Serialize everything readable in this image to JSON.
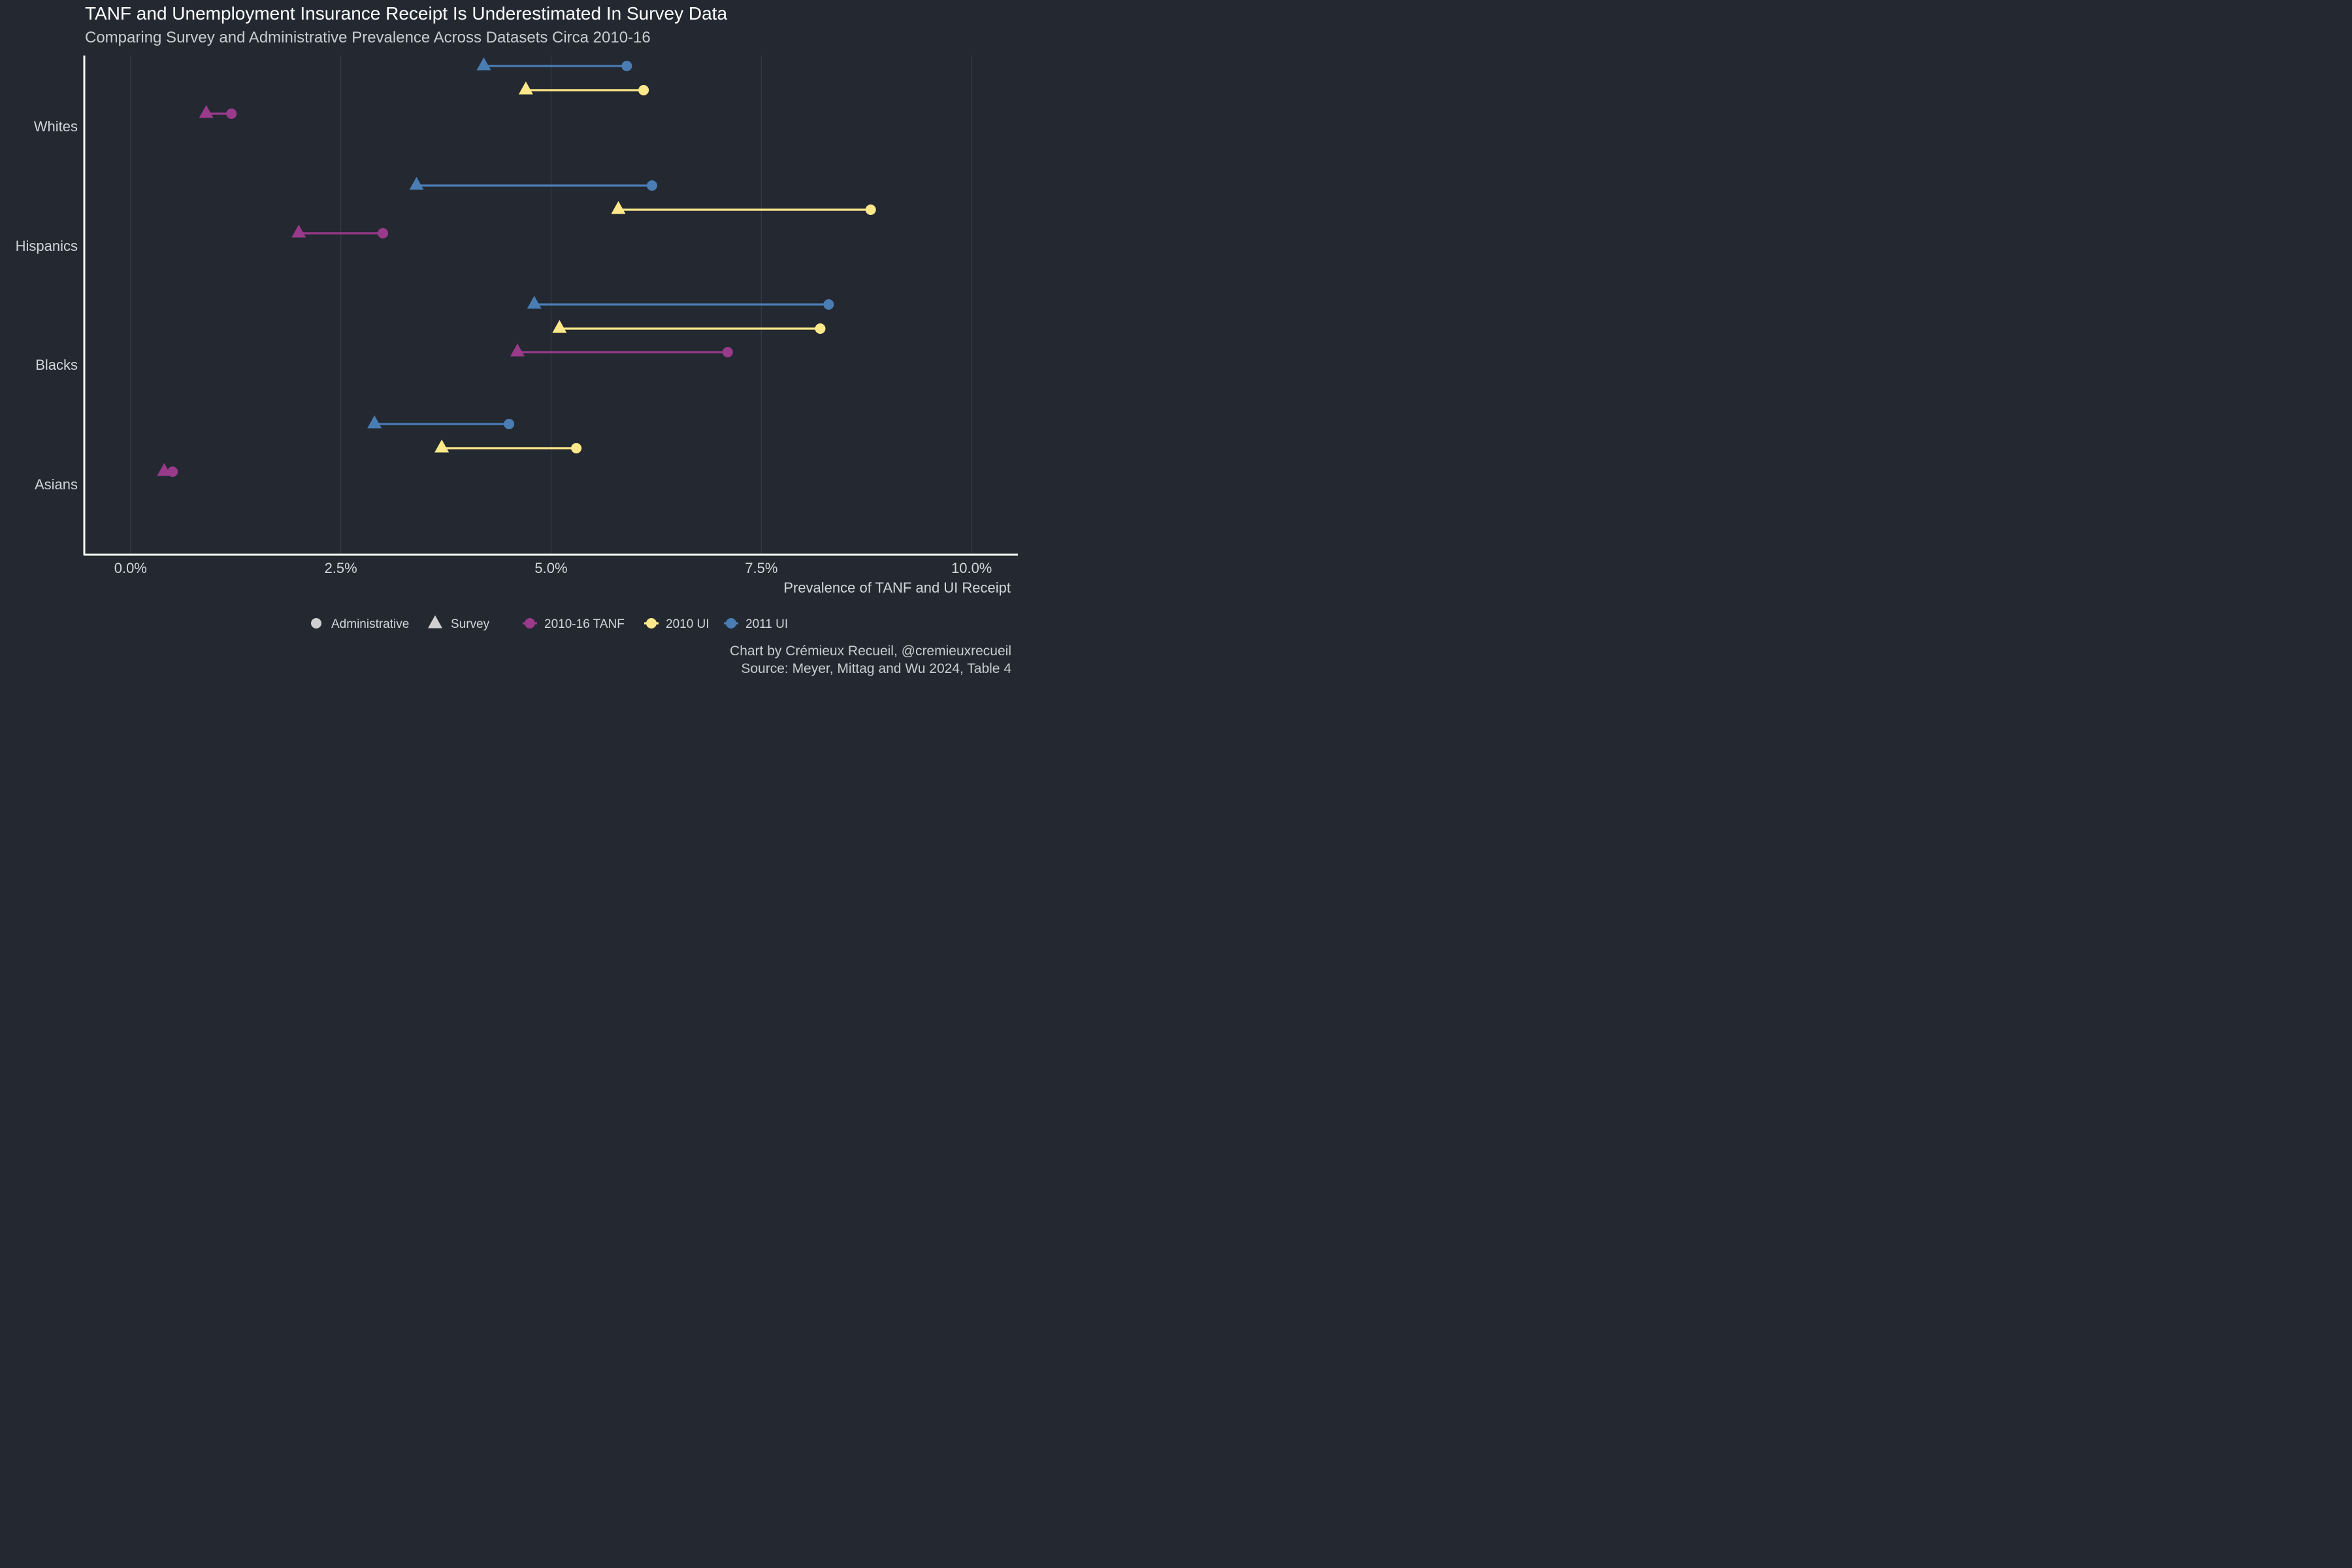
{
  "title": "TANF and Unemployment Insurance Receipt Is Underestimated In Survey Data",
  "subtitle": "Comparing Survey and Administrative Prevalence Across Datasets Circa 2010-16",
  "caption": {
    "line1": "Chart by Crémieux Recueil, @cremieuxrecueil",
    "line2": "Source: Meyer, Mittag and Wu 2024, Table 4"
  },
  "colors": {
    "background": "#232831",
    "tanf": "#993a8b",
    "ui2010": "#fde98a",
    "ui2011": "#4a7db3",
    "grid": "#363c47",
    "axis": "#ffffff",
    "legend_shape": "#d0d0d0"
  },
  "chart_data": {
    "type": "dumbbell",
    "xlabel": "Prevalence of TANF and UI Receipt",
    "xlim": [
      -0.0055,
      0.1055
    ],
    "xticks": [
      0.0,
      0.025,
      0.05,
      0.075,
      0.1
    ],
    "xtick_labels": [
      "0.0%",
      "2.5%",
      "5.0%",
      "7.5%",
      "10.0%"
    ],
    "categories": [
      "Whites",
      "Hispanics",
      "Blacks",
      "Asians"
    ],
    "grid": "vertical",
    "legend_position": "bottom",
    "shape_legend": [
      {
        "name": "Administrative",
        "shape": "circle"
      },
      {
        "name": "Survey",
        "shape": "triangle"
      }
    ],
    "series": [
      {
        "name": "2010-16 TANF",
        "color_key": "tanf",
        "points": [
          {
            "group": "Whites",
            "survey": 0.009,
            "administrative": 0.012
          },
          {
            "group": "Hispanics",
            "survey": 0.02,
            "administrative": 0.03
          },
          {
            "group": "Blacks",
            "survey": 0.046,
            "administrative": 0.071
          },
          {
            "group": "Asians",
            "survey": 0.004,
            "administrative": 0.005
          }
        ]
      },
      {
        "name": "2010 UI",
        "color_key": "ui2010",
        "points": [
          {
            "group": "Whites",
            "survey": 0.047,
            "administrative": 0.061
          },
          {
            "group": "Hispanics",
            "survey": 0.058,
            "administrative": 0.088
          },
          {
            "group": "Blacks",
            "survey": 0.051,
            "administrative": 0.082
          },
          {
            "group": "Asians",
            "survey": 0.037,
            "administrative": 0.053
          }
        ]
      },
      {
        "name": "2011 UI",
        "color_key": "ui2011",
        "points": [
          {
            "group": "Whites",
            "survey": 0.042,
            "administrative": 0.059
          },
          {
            "group": "Hispanics",
            "survey": 0.034,
            "administrative": 0.062
          },
          {
            "group": "Blacks",
            "survey": 0.048,
            "administrative": 0.083
          },
          {
            "group": "Asians",
            "survey": 0.029,
            "administrative": 0.045
          }
        ]
      }
    ]
  }
}
